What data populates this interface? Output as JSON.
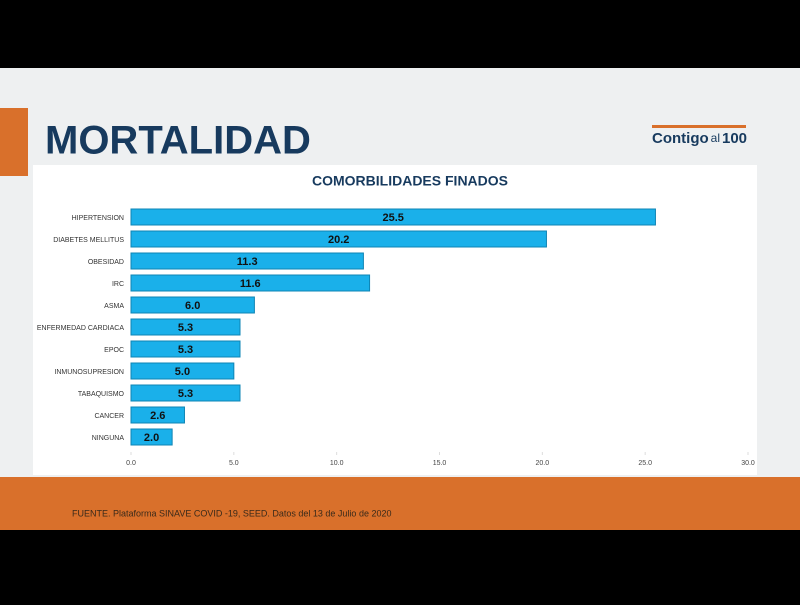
{
  "header": {
    "title": "MORTALIDAD",
    "logo": {
      "word": "Contigo",
      "small": "al",
      "number": "100"
    }
  },
  "chart_data": {
    "type": "hbar",
    "title": "COMORBILIDADES FINADOS",
    "categories": [
      "HIPERTENSION",
      "DIABETES MELLITUS",
      "OBESIDAD",
      "IRC",
      "ASMA",
      "ENFERMEDAD CARDIACA",
      "EPOC",
      "INMUNOSUPRESION",
      "TABAQUISMO",
      "CANCER",
      "NINGUNA"
    ],
    "values": [
      25.5,
      20.2,
      11.3,
      11.6,
      6.0,
      5.3,
      5.3,
      5.0,
      5.3,
      2.6,
      2.0
    ],
    "value_labels": [
      "25.5",
      "20.2",
      "11.3",
      "11.6",
      "6.0",
      "5.3",
      "5.3",
      "5.0",
      "5.3",
      "2.6",
      "2.0"
    ],
    "color": "#1ab0ea",
    "xlim": [
      0,
      30
    ],
    "xticks": [
      {
        "value": 0,
        "label": "0.0"
      },
      {
        "value": 5,
        "label": "5.0"
      },
      {
        "value": 10,
        "label": "10.0"
      },
      {
        "value": 15,
        "label": "15.0"
      },
      {
        "value": 20,
        "label": "20.0"
      },
      {
        "value": 25,
        "label": "25.0"
      },
      {
        "value": 30,
        "label": "30.0"
      }
    ]
  },
  "footer": {
    "source": "FUENTE. Plataforma SINAVE COVID -19, SEED. Datos del 13 de Julio de 2020"
  }
}
